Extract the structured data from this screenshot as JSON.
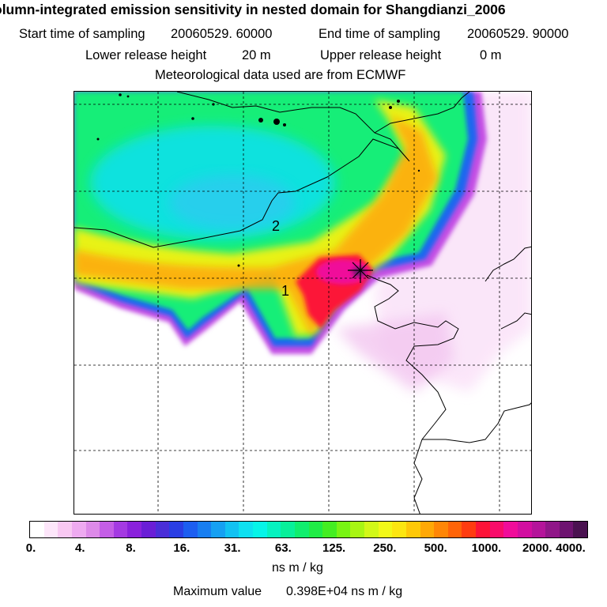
{
  "title": "olumn-integrated emission sensitivity in nested domain for Shangdianzi_2006",
  "subtitle": {
    "start_label": "Start time of sampling",
    "start_value": "20060529. 60000",
    "end_label": "End time of sampling",
    "end_value": "20060529. 90000",
    "lower_label": "Lower release height",
    "lower_value": "20 m",
    "upper_label": "Upper release height",
    "upper_value": "0 m",
    "met_text": "Meteorological data used are from ECMWF"
  },
  "map": {
    "contour_labels": [
      "1",
      "2"
    ]
  },
  "colorbar": {
    "ticks": [
      "0.",
      "4.",
      "8.",
      "16.",
      "31.",
      "63.",
      "125.",
      "250.",
      "500.",
      "1000.",
      "2000.",
      "4000."
    ],
    "unit": "ns m / kg",
    "colors": [
      "#ffffff",
      "#fde6fa",
      "#f8c8f2",
      "#eeaaf0",
      "#dd8ae8",
      "#c45ee6",
      "#a43ae2",
      "#8a22dc",
      "#6a1ed6",
      "#4a2ed8",
      "#2a3ee4",
      "#1c5ef0",
      "#187ef0",
      "#16a0f2",
      "#12c2f2",
      "#0ee0f0",
      "#06f4e8",
      "#06f2c0",
      "#08f09a",
      "#10ee6e",
      "#20ec46",
      "#44ee22",
      "#78f414",
      "#a8f614",
      "#d2f818",
      "#f2f818",
      "#fce610",
      "#fec808",
      "#ffa806",
      "#ff8606",
      "#ff6408",
      "#ff3c10",
      "#fc1438",
      "#f80c6a",
      "#f00c9a",
      "#d20ea0",
      "#b4149a",
      "#901688",
      "#6e1470",
      "#4a1250"
    ]
  },
  "max_value_label": "Maximum value",
  "max_value": "0.398E+04 ns m / kg"
}
